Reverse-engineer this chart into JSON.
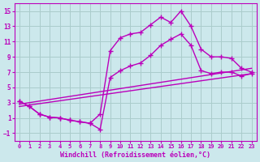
{
  "bg_color": "#cce8ec",
  "line_color": "#bb00bb",
  "grid_color": "#aacccc",
  "xlabel": "Windchill (Refroidissement éolien,°C)",
  "xlim": [
    -0.5,
    23.5
  ],
  "ylim": [
    -2.0,
    16.0
  ],
  "xticks": [
    0,
    1,
    2,
    3,
    4,
    5,
    6,
    7,
    8,
    9,
    10,
    11,
    12,
    13,
    14,
    15,
    16,
    17,
    18,
    19,
    20,
    21,
    22,
    23
  ],
  "yticks": [
    -1,
    1,
    3,
    5,
    7,
    9,
    11,
    13,
    15
  ],
  "curve1_x": [
    0,
    1,
    2,
    3,
    4,
    5,
    6,
    7,
    8,
    9,
    10,
    11,
    12,
    13,
    14,
    15,
    16,
    17,
    18,
    19,
    20,
    21,
    22,
    23
  ],
  "curve1_y": [
    3.2,
    2.5,
    1.5,
    1.1,
    1.0,
    0.7,
    0.5,
    0.3,
    1.5,
    9.8,
    11.5,
    12.0,
    12.2,
    13.2,
    14.2,
    13.5,
    15.0,
    13.0,
    10.0,
    9.0,
    9.0,
    8.8,
    7.5,
    7.0
  ],
  "curve2_x": [
    0,
    1,
    2,
    3,
    4,
    5,
    6,
    7,
    8,
    9,
    10,
    11,
    12,
    13,
    14,
    15,
    16,
    17,
    18,
    19,
    20,
    21,
    22,
    23
  ],
  "curve2_y": [
    3.2,
    2.5,
    1.5,
    1.1,
    1.0,
    0.7,
    0.5,
    0.3,
    -0.5,
    6.3,
    7.2,
    7.8,
    8.2,
    9.2,
    10.5,
    11.3,
    12.0,
    10.5,
    7.2,
    6.8,
    7.0,
    7.0,
    6.5,
    6.8
  ],
  "line1_x": [
    0,
    23
  ],
  "line1_y": [
    2.8,
    7.5
  ],
  "line2_x": [
    0,
    23
  ],
  "line2_y": [
    2.5,
    6.8
  ],
  "marker": "+",
  "markersize": 4,
  "markeredgewidth": 1.0,
  "linewidth": 1.0,
  "tick_fontsize": 5.5,
  "xlabel_fontsize": 6.0
}
